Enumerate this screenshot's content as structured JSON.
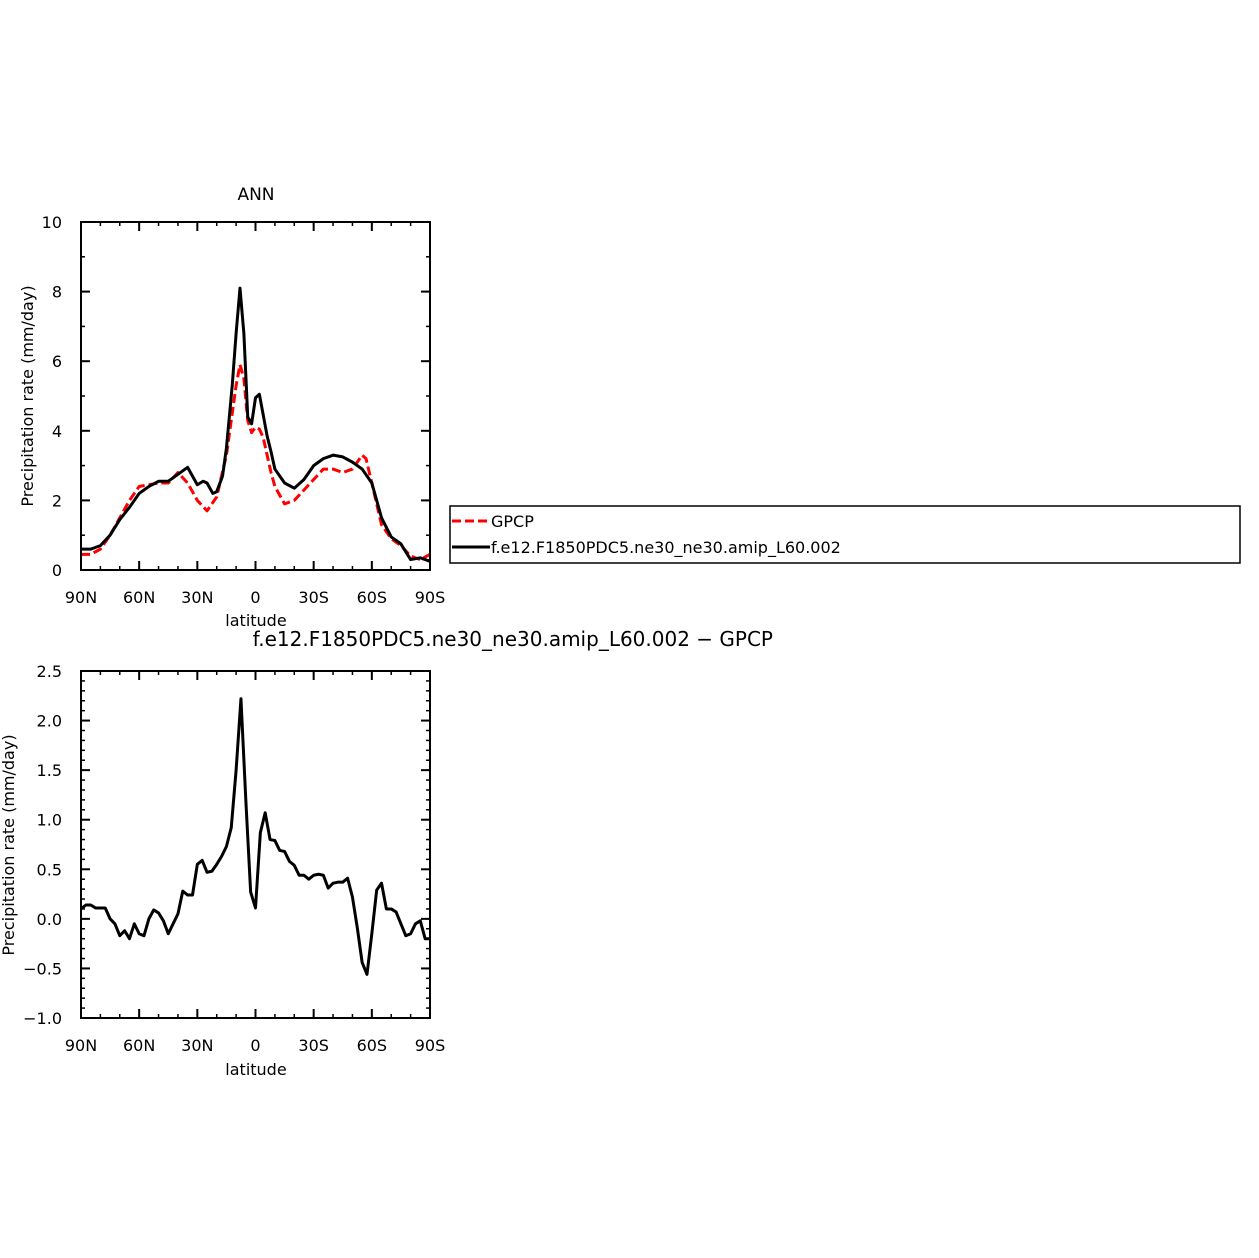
{
  "chart_data": [
    {
      "type": "line",
      "title": "ANN",
      "xlabel": "latitude",
      "ylabel": "Precipitation rate (mm/day)",
      "xlim": [
        90,
        -90
      ],
      "ylim": [
        0,
        10
      ],
      "xticks": [
        {
          "value": 90,
          "label": "90N"
        },
        {
          "value": 60,
          "label": "60N"
        },
        {
          "value": 30,
          "label": "30N"
        },
        {
          "value": 0,
          "label": "0"
        },
        {
          "value": -30,
          "label": "30S"
        },
        {
          "value": -60,
          "label": "60S"
        },
        {
          "value": -90,
          "label": "90S"
        }
      ],
      "yticks": [
        {
          "value": 0,
          "label": "0"
        },
        {
          "value": 2,
          "label": "2"
        },
        {
          "value": 4,
          "label": "4"
        },
        {
          "value": 6,
          "label": "6"
        },
        {
          "value": 8,
          "label": "8"
        },
        {
          "value": 10,
          "label": "10"
        }
      ],
      "grid": false,
      "legend": {
        "placement": "right",
        "entries": [
          "GPCP",
          "f.e12.F1850PDC5.ne30_ne30.amip_L60.002"
        ]
      },
      "series": [
        {
          "name": "GPCP",
          "color": "#ff0000",
          "dash": "dashed",
          "x": [
            90,
            85,
            80,
            75,
            70,
            65,
            60,
            55,
            50,
            45,
            40,
            35,
            30,
            25,
            20,
            15,
            10,
            8,
            6,
            4,
            2,
            0,
            -2,
            -4,
            -6,
            -8,
            -10,
            -15,
            -20,
            -25,
            -30,
            -35,
            -40,
            -45,
            -50,
            -55,
            -57,
            -60,
            -65,
            -70,
            -75,
            -80,
            -85,
            -90
          ],
          "y": [
            0.45,
            0.45,
            0.6,
            1.0,
            1.5,
            2.0,
            2.4,
            2.45,
            2.5,
            2.5,
            2.8,
            2.5,
            2.0,
            1.7,
            2.1,
            3.3,
            5.3,
            5.9,
            5.5,
            4.3,
            3.95,
            4.1,
            4.05,
            3.8,
            3.3,
            2.8,
            2.4,
            1.9,
            2.0,
            2.3,
            2.6,
            2.9,
            2.9,
            2.8,
            2.9,
            3.3,
            3.2,
            2.5,
            1.3,
            0.9,
            0.7,
            0.4,
            0.3,
            0.45
          ]
        },
        {
          "name": "f.e12.F1850PDC5.ne30_ne30.amip_L60.002",
          "color": "#000000",
          "dash": "solid",
          "x": [
            90,
            85,
            80,
            75,
            70,
            65,
            60,
            55,
            50,
            45,
            40,
            35,
            30,
            27,
            25,
            22,
            20,
            17,
            15,
            12,
            10,
            8,
            6,
            4,
            2,
            0,
            -2,
            -4,
            -6,
            -8,
            -10,
            -15,
            -20,
            -25,
            -30,
            -35,
            -40,
            -45,
            -50,
            -55,
            -60,
            -65,
            -70,
            -75,
            -80,
            -85,
            -90
          ],
          "y": [
            0.6,
            0.6,
            0.7,
            1.0,
            1.45,
            1.8,
            2.2,
            2.4,
            2.55,
            2.55,
            2.75,
            2.95,
            2.45,
            2.55,
            2.5,
            2.2,
            2.25,
            2.7,
            3.5,
            5.3,
            6.8,
            8.1,
            6.8,
            4.4,
            4.2,
            4.95,
            5.05,
            4.45,
            3.85,
            3.4,
            2.9,
            2.5,
            2.35,
            2.6,
            3.0,
            3.2,
            3.3,
            3.25,
            3.1,
            2.9,
            2.5,
            1.5,
            0.95,
            0.75,
            0.3,
            0.35,
            0.25
          ]
        }
      ]
    },
    {
      "type": "line",
      "title": "f.e12.F1850PDC5.ne30_ne30.amip_L60.002 − GPCP",
      "xlabel": "latitude",
      "ylabel": "Precipitation rate (mm/day)",
      "xlim": [
        90,
        -90
      ],
      "ylim": [
        -1.0,
        2.5
      ],
      "xticks": [
        {
          "value": 90,
          "label": "90N"
        },
        {
          "value": 60,
          "label": "60N"
        },
        {
          "value": 30,
          "label": "30N"
        },
        {
          "value": 0,
          "label": "0"
        },
        {
          "value": -30,
          "label": "30S"
        },
        {
          "value": -60,
          "label": "60S"
        },
        {
          "value": -90,
          "label": "90S"
        }
      ],
      "yticks": [
        {
          "value": -1.0,
          "label": "−1.0"
        },
        {
          "value": -0.5,
          "label": "−0.5"
        },
        {
          "value": 0.0,
          "label": "0.0"
        },
        {
          "value": 0.5,
          "label": "0.5"
        },
        {
          "value": 1.0,
          "label": "1.0"
        },
        {
          "value": 1.5,
          "label": "1.5"
        },
        {
          "value": 2.0,
          "label": "2.0"
        },
        {
          "value": 2.5,
          "label": "2.5"
        }
      ],
      "grid": false,
      "series": [
        {
          "color": "#000000",
          "dash": "solid",
          "x": [
            90,
            87.5,
            85,
            82.5,
            80,
            77.5,
            75,
            72.5,
            70,
            67.5,
            65,
            62.5,
            60,
            57.5,
            55,
            52.5,
            50,
            47.5,
            45,
            42.5,
            40,
            37.5,
            35,
            32.5,
            30,
            27.5,
            25,
            22.5,
            20,
            17.5,
            15,
            12.5,
            10,
            7.5,
            5,
            2.5,
            0,
            -2.5,
            -5,
            -7.5,
            -10,
            -12.5,
            -15,
            -17.5,
            -20,
            -22.5,
            -25,
            -27.5,
            -30,
            -32.5,
            -35,
            -37.5,
            -40,
            -42.5,
            -45,
            -47.5,
            -50,
            -52.5,
            -55,
            -57.5,
            -60,
            -62.5,
            -65,
            -67.5,
            -70,
            -72.5,
            -75,
            -77.5,
            -80,
            -82.5,
            -85,
            -87.5,
            -90
          ],
          "y": [
            0.1,
            0.14,
            0.14,
            0.11,
            0.11,
            0.11,
            0.0,
            -0.05,
            -0.17,
            -0.12,
            -0.2,
            -0.05,
            -0.15,
            -0.17,
            0.0,
            0.09,
            0.06,
            -0.02,
            -0.15,
            -0.05,
            0.05,
            0.28,
            0.24,
            0.24,
            0.55,
            0.59,
            0.47,
            0.48,
            0.55,
            0.63,
            0.73,
            0.92,
            1.5,
            2.22,
            1.2,
            0.27,
            0.11,
            0.87,
            1.07,
            0.8,
            0.79,
            0.69,
            0.68,
            0.58,
            0.54,
            0.44,
            0.44,
            0.4,
            0.44,
            0.45,
            0.44,
            0.31,
            0.36,
            0.37,
            0.37,
            0.41,
            0.22,
            -0.09,
            -0.44,
            -0.56,
            -0.15,
            0.29,
            0.36,
            0.1,
            0.1,
            0.07,
            -0.05,
            -0.17,
            -0.15,
            -0.05,
            -0.02,
            -0.2,
            -0.2
          ]
        }
      ]
    }
  ]
}
